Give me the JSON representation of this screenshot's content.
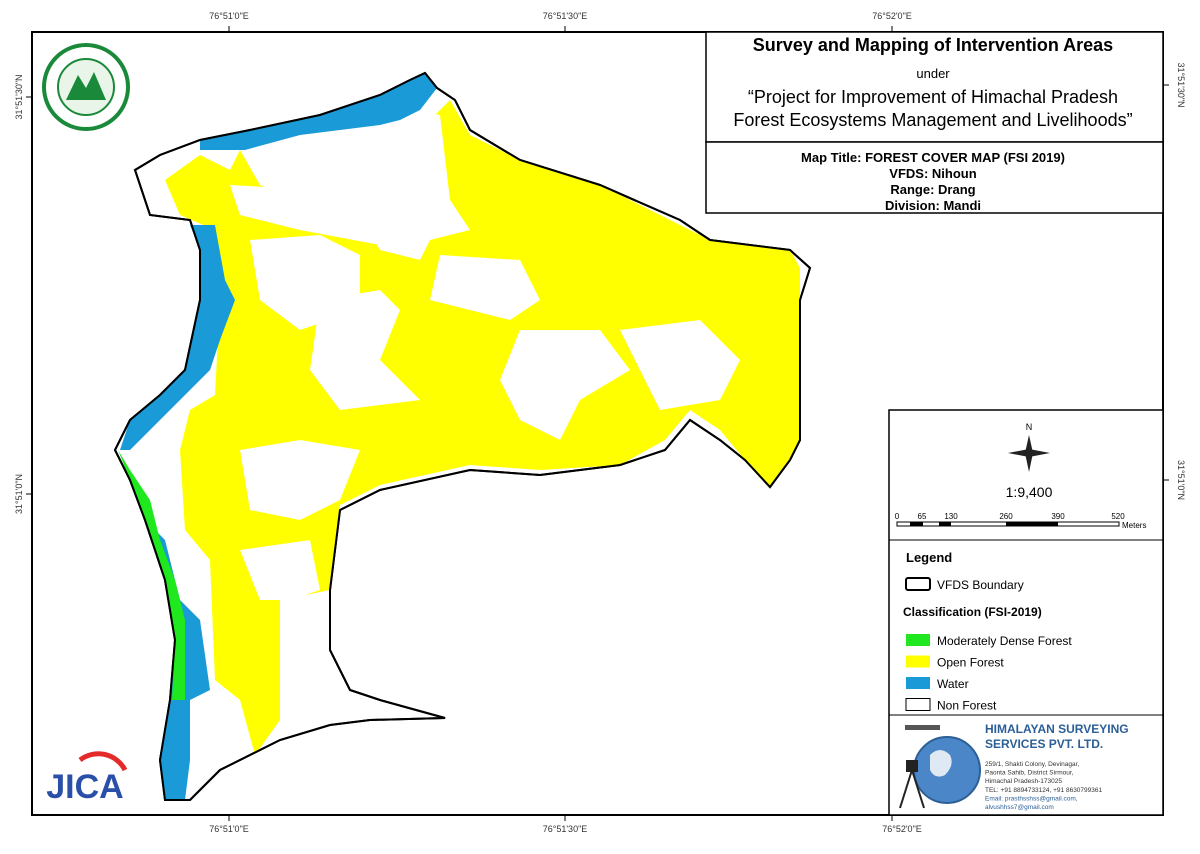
{
  "coordinates": {
    "top": [
      "76°51'0\"E",
      "76°51'30\"E",
      "76°52'0\"E"
    ],
    "bottom": [
      "76°51'0\"E",
      "76°51'30\"E",
      "76°52'0\"E"
    ],
    "left": [
      "31°51'30\"N",
      "31°51'0\"N"
    ],
    "right": [
      "31°51'30\"N",
      "31°51'0\"N"
    ]
  },
  "header": {
    "title": "Survey and Mapping of Intervention Areas",
    "under": "under",
    "project": [
      "“Project for Improvement of Himachal Pradesh",
      "Forest Ecosystems Management and Livelihoods”"
    ]
  },
  "map_info": [
    "Map Title: FOREST COVER MAP (FSI 2019)",
    "VFDS: Nihoun",
    "Range: Drang",
    "Division: Mandi"
  ],
  "north": "N",
  "scale": "1:9,400",
  "scale_bar": {
    "ticks": [
      "0",
      "65",
      "130",
      "260",
      "390",
      "520"
    ],
    "unit": "Meters"
  },
  "legend": {
    "title": "Legend",
    "boundary": "VFDS Boundary",
    "classification_title": "Classification (FSI-2019)",
    "items": [
      {
        "label": "Moderately Dense Forest",
        "color": "#1fe81f"
      },
      {
        "label": "Open Forest",
        "color": "#ffff00"
      },
      {
        "label": "Water",
        "color": "#1a9ad6"
      },
      {
        "label": "Non Forest",
        "color": "#ffffff"
      }
    ]
  },
  "company": {
    "name": [
      "HIMALAYAN SURVEYING",
      "SERVICES PVT. LTD."
    ],
    "address": [
      "259/1, Shakti Colony, Devinagar,",
      "Paonta Sahib, District Sirmour,",
      "Himachal Pradesh-173025",
      "TEL: +91 8894733124, +91 8630799361",
      "Email: prasthsshss@gmail.com,",
      "alvushhss7@gmail.com"
    ]
  },
  "logos": {
    "jica": "JICA"
  }
}
